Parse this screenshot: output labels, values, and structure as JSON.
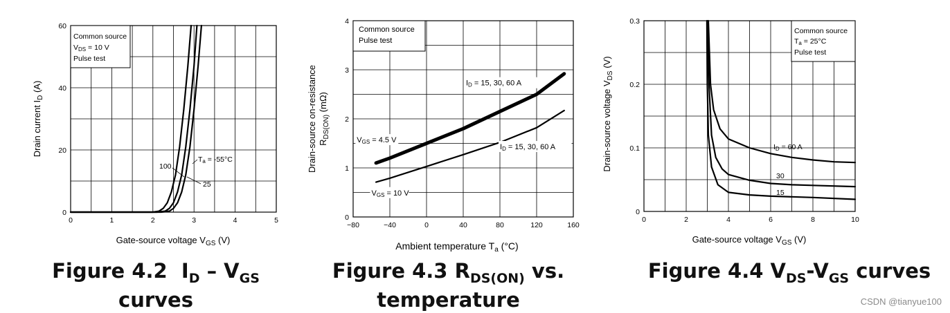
{
  "chart_data": [
    {
      "type": "line",
      "xlim": [
        0,
        5
      ],
      "ylim": [
        0,
        60
      ],
      "x_ticks": [
        "0",
        "1",
        "2",
        "3",
        "4",
        "5"
      ],
      "y_ticks": [
        "0",
        "20",
        "40",
        "60"
      ],
      "xlabel": {
        "main": "Gate-source voltage",
        "sym": "V",
        "sub": "GS",
        "unit": "(V)"
      },
      "ylabel": {
        "main": "Drain current",
        "sym": "I",
        "sub": "D",
        "unit": "(A)"
      },
      "legend_lines": [
        {
          "text": "Common source"
        },
        {
          "text": "V",
          "sub": "DS",
          "rest": " = 10 V"
        },
        {
          "text": "Pulse test"
        }
      ],
      "series": [
        {
          "name": "100",
          "label": "100",
          "points": [
            [
              0,
              0
            ],
            [
              2.0,
              0
            ],
            [
              2.15,
              0.3
            ],
            [
              2.25,
              1.2
            ],
            [
              2.35,
              3
            ],
            [
              2.45,
              6.5
            ],
            [
              2.55,
              12
            ],
            [
              2.65,
              21
            ],
            [
              2.75,
              33
            ],
            [
              2.85,
              47
            ],
            [
              2.93,
              60
            ]
          ]
        },
        {
          "name": "25",
          "label": "25",
          "points": [
            [
              0,
              0
            ],
            [
              2.1,
              0
            ],
            [
              2.3,
              0.3
            ],
            [
              2.4,
              1.2
            ],
            [
              2.5,
              3
            ],
            [
              2.6,
              6.5
            ],
            [
              2.7,
              12
            ],
            [
              2.8,
              21
            ],
            [
              2.9,
              33
            ],
            [
              3.0,
              47
            ],
            [
              3.07,
              60
            ]
          ]
        },
        {
          "name": "-55",
          "label": "T",
          "label_sub": "a",
          "label_rest": " = -55°C",
          "points": [
            [
              0,
              0
            ],
            [
              2.2,
              0
            ],
            [
              2.4,
              0.3
            ],
            [
              2.5,
              1.2
            ],
            [
              2.6,
              3
            ],
            [
              2.7,
              6.5
            ],
            [
              2.8,
              12
            ],
            [
              2.9,
              21
            ],
            [
              3.0,
              33
            ],
            [
              3.1,
              47
            ],
            [
              3.18,
              60
            ]
          ]
        }
      ],
      "caption": {
        "l1_prefix": "Figure 4.2  ",
        "l1_sym1": "I",
        "l1_sub1": "D",
        "l1_mid": " – ",
        "l1_sym2": "V",
        "l1_sub2": "GS",
        "l2": "curves"
      }
    },
    {
      "type": "line",
      "xlim": [
        -80,
        160
      ],
      "ylim": [
        0,
        4
      ],
      "x_ticks": [
        "−80",
        "−40",
        "0",
        "40",
        "80",
        "120",
        "160"
      ],
      "y_ticks": [
        "0",
        "1",
        "2",
        "3",
        "4"
      ],
      "xlabel": {
        "main": "Ambient temperature",
        "sym": "T",
        "sub": "a",
        "unit": "(°C)"
      },
      "ylabel": {
        "line1": "Drain-source on-resistance",
        "sym": "R",
        "sub": "DS(ON)",
        "unit": "(mΩ)"
      },
      "legend_lines": [
        {
          "text": "Common source"
        },
        {
          "text": "Pulse test"
        }
      ],
      "series": [
        {
          "name": "VGS = 4.5 V",
          "thick": true,
          "points": [
            [
              -55,
              1.1
            ],
            [
              -40,
              1.2
            ],
            [
              0,
              1.5
            ],
            [
              40,
              1.8
            ],
            [
              80,
              2.15
            ],
            [
              120,
              2.5
            ],
            [
              150,
              2.92
            ]
          ]
        },
        {
          "name": "VGS = 10 V",
          "thick": false,
          "points": [
            [
              -55,
              0.71
            ],
            [
              -40,
              0.79
            ],
            [
              0,
              1.03
            ],
            [
              40,
              1.27
            ],
            [
              80,
              1.52
            ],
            [
              120,
              1.82
            ],
            [
              150,
              2.17
            ]
          ]
        }
      ],
      "annotations": [
        {
          "sym": "I",
          "sub": "D",
          "rest": " = 15, 30, 60 A",
          "at": [
            43,
            2.68
          ]
        },
        {
          "sym": "I",
          "sub": "D",
          "rest": " = 15, 30, 60 A",
          "at": [
            80,
            1.38
          ]
        },
        {
          "sym": "V",
          "sub": "GS",
          "rest": " = 4.5 V",
          "at": [
            -76,
            1.52
          ]
        },
        {
          "sym": "V",
          "sub": "GS",
          "rest": " = 10 V",
          "at": [
            -60,
            0.44
          ]
        }
      ],
      "caption": {
        "l1_prefix": "Figure 4.3 ",
        "l1_sym": "R",
        "l1_sub": "DS(ON)",
        "l1_rest": " vs.",
        "l2": "temperature"
      }
    },
    {
      "type": "line",
      "xlim": [
        0,
        10
      ],
      "ylim": [
        0,
        0.3
      ],
      "x_ticks": [
        "0",
        "2",
        "4",
        "6",
        "8",
        "10"
      ],
      "y_ticks": [
        "0",
        "0.1",
        "0.2",
        "0.3"
      ],
      "xlabel": {
        "main": "Gate-source voltage",
        "sym": "V",
        "sub": "GS",
        "unit": "(V)"
      },
      "ylabel": {
        "main": "Drain-source voltage",
        "sym": "V",
        "sub": "DS",
        "unit": "(V)"
      },
      "legend_lines": [
        {
          "text": "Common source"
        },
        {
          "text": "T",
          "sub": "a",
          "rest": " = 25°C"
        },
        {
          "text": "Pulse test"
        }
      ],
      "series": [
        {
          "name": "ID = 60 A",
          "label_sym": "I",
          "label_sub": "D",
          "label_rest": " = 60 A",
          "label_at": [
            6.2,
            0.103
          ],
          "points": [
            [
              3.05,
              0.3
            ],
            [
              3.15,
              0.2
            ],
            [
              3.3,
              0.16
            ],
            [
              3.6,
              0.13
            ],
            [
              4.0,
              0.114
            ],
            [
              5.0,
              0.1
            ],
            [
              6.0,
              0.091
            ],
            [
              7.0,
              0.085
            ],
            [
              8.0,
              0.081
            ],
            [
              9.0,
              0.078
            ],
            [
              10.0,
              0.077
            ]
          ]
        },
        {
          "name": "30",
          "label_sym": "30",
          "label_at": [
            6.4,
            0.053
          ],
          "points": [
            [
              3.02,
              0.3
            ],
            [
              3.08,
              0.2
            ],
            [
              3.2,
              0.12
            ],
            [
              3.4,
              0.085
            ],
            [
              3.7,
              0.067
            ],
            [
              4.0,
              0.058
            ],
            [
              5.0,
              0.049
            ],
            [
              6.0,
              0.044
            ],
            [
              7.0,
              0.042
            ],
            [
              8.0,
              0.041
            ],
            [
              10.0,
              0.039
            ]
          ]
        },
        {
          "name": "15",
          "label_sym": "15",
          "label_at": [
            6.4,
            0.028
          ],
          "points": [
            [
              2.98,
              0.3
            ],
            [
              3.0,
              0.2
            ],
            [
              3.05,
              0.12
            ],
            [
              3.2,
              0.07
            ],
            [
              3.5,
              0.042
            ],
            [
              4.0,
              0.03
            ],
            [
              5.0,
              0.026
            ],
            [
              6.0,
              0.024
            ],
            [
              8.0,
              0.022
            ],
            [
              10.0,
              0.019
            ]
          ]
        }
      ],
      "caption": {
        "sym1": "V",
        "prefix": "Figure 4.4 ",
        "sub1": "DS",
        "dash": "-",
        "sym2": "V",
        "sub2": "GS",
        "rest": " curves"
      }
    }
  ],
  "watermark": "CSDN @tianyue100"
}
